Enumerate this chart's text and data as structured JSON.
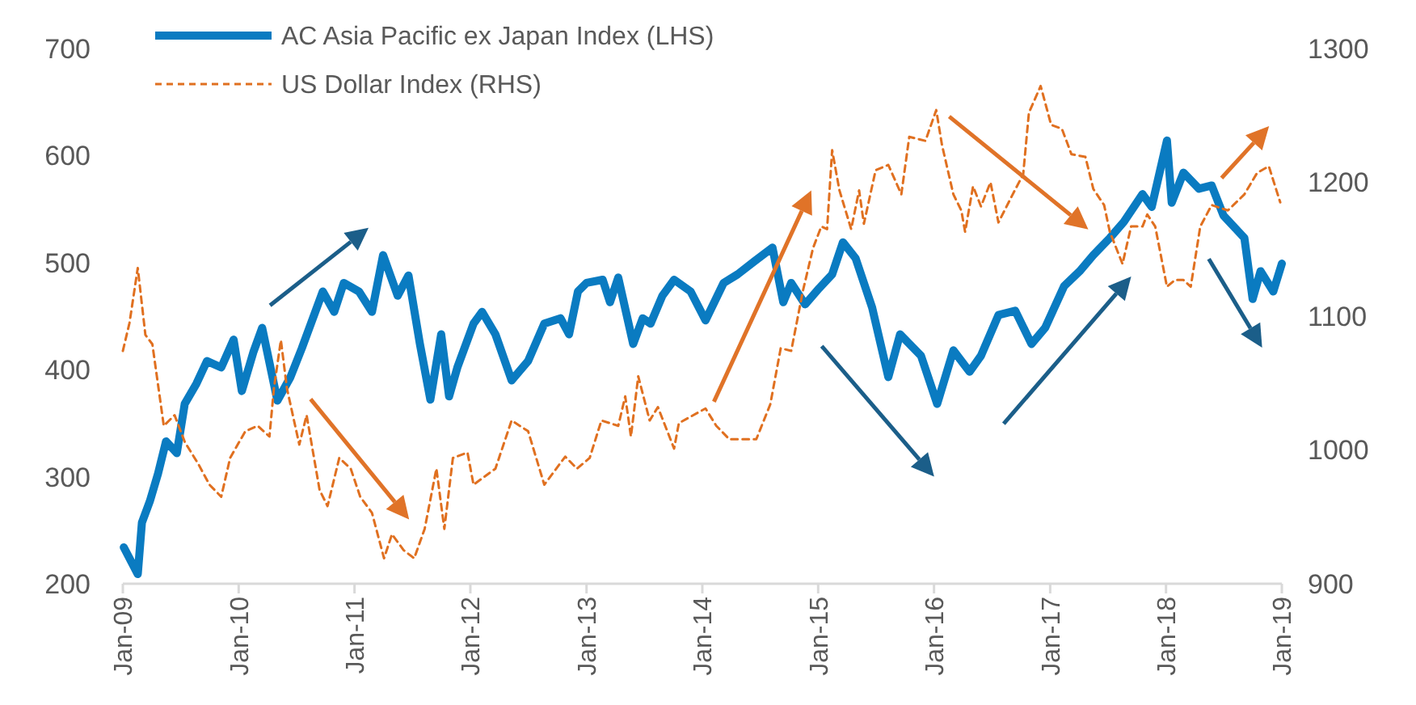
{
  "chart_data": {
    "type": "line",
    "xlim": [
      "2009-01-01",
      "2019-01-01"
    ],
    "xticks": [
      {
        "value": "2009-01-01",
        "label": "Jan-09"
      },
      {
        "value": "2010-01-01",
        "label": "Jan-10"
      },
      {
        "value": "2011-01-01",
        "label": "Jan-11"
      },
      {
        "value": "2012-01-01",
        "label": "Jan-12"
      },
      {
        "value": "2013-01-01",
        "label": "Jan-13"
      },
      {
        "value": "2014-01-01",
        "label": "Jan-14"
      },
      {
        "value": "2015-01-01",
        "label": "Jan-15"
      },
      {
        "value": "2016-01-01",
        "label": "Jan-16"
      },
      {
        "value": "2017-01-01",
        "label": "Jan-17"
      },
      {
        "value": "2018-01-01",
        "label": "Jan-18"
      },
      {
        "value": "2019-01-01",
        "label": "Jan-19"
      }
    ],
    "ylim": [
      200,
      700
    ],
    "yticks": [
      200,
      300,
      400,
      500,
      600,
      700
    ],
    "y2lim": [
      900,
      1300
    ],
    "y2ticks": [
      900,
      1000,
      1100,
      1200,
      1300
    ],
    "grid": false,
    "legend": "top left",
    "marker": "none",
    "series": [
      {
        "name": "AC Asia Pacific ex Japan Index (LHS)",
        "color": "#0a7bc1",
        "line_style": "solid",
        "x": [
          "2009-01-04",
          "2009-02-17",
          "2009-03-02",
          "2009-03-27",
          "2009-04-22",
          "2009-05-17",
          "2009-06-20",
          "2009-07-15",
          "2009-08-21",
          "2009-09-23",
          "2009-11-07",
          "2009-12-16",
          "2010-01-11",
          "2010-02-17",
          "2010-03-16",
          "2010-05-03",
          "2010-06-13",
          "2010-07-19",
          "2010-09-23",
          "2010-10-29",
          "2010-11-28",
          "2011-01-15",
          "2011-02-25",
          "2011-04-01",
          "2011-05-17",
          "2011-06-20",
          "2011-07-26",
          "2011-08-28",
          "2011-10-01",
          "2011-10-26",
          "2011-11-21",
          "2012-01-11",
          "2012-02-07",
          "2012-03-20",
          "2012-05-10",
          "2012-07-01",
          "2012-08-21",
          "2012-10-11",
          "2012-11-07",
          "2012-12-05",
          "2013-01-01",
          "2013-02-21",
          "2013-03-16",
          "2013-04-11",
          "2013-05-28",
          "2013-06-27",
          "2013-07-22",
          "2013-08-28",
          "2013-10-04",
          "2013-11-25",
          "2014-01-11",
          "2014-03-09",
          "2014-04-22",
          "2014-06-13",
          "2014-08-10",
          "2014-09-13",
          "2014-10-08",
          "2014-11-21",
          "2015-01-04",
          "2015-02-14",
          "2015-03-20",
          "2015-04-29",
          "2015-06-20",
          "2015-08-10",
          "2015-09-16",
          "2015-11-21",
          "2016-01-11",
          "2016-03-02",
          "2016-04-22",
          "2016-05-28",
          "2016-07-22",
          "2016-09-13",
          "2016-11-03",
          "2016-12-16",
          "2017-02-14",
          "2017-04-04",
          "2017-05-17",
          "2017-07-08",
          "2017-08-21",
          "2017-10-19",
          "2017-11-17",
          "2018-01-04",
          "2018-01-19",
          "2018-02-25",
          "2018-04-15",
          "2018-05-25",
          "2018-07-01",
          "2018-09-05",
          "2018-10-01",
          "2018-10-26",
          "2018-12-05",
          "2019-01-01"
        ],
        "values": [
          234,
          209,
          257,
          277,
          303,
          333,
          322,
          368,
          387,
          408,
          402,
          428,
          380,
          417,
          439,
          371,
          393,
          420,
          473,
          454,
          481,
          473,
          454,
          507,
          469,
          488,
          424,
          372,
          433,
          375,
          402,
          443,
          454,
          433,
          390,
          408,
          443,
          448,
          433,
          473,
          481,
          484,
          463,
          486,
          424,
          448,
          443,
          469,
          484,
          473,
          446,
          481,
          489,
          501,
          514,
          463,
          481,
          461,
          476,
          489,
          519,
          504,
          458,
          393,
          433,
          413,
          368,
          418,
          398,
          413,
          451,
          455,
          424,
          439,
          478,
          492,
          507,
          523,
          538,
          564,
          552,
          614,
          556,
          584,
          569,
          572,
          544,
          523,
          466,
          492,
          473,
          499
        ]
      },
      {
        "name": "US Dollar Index (RHS)",
        "color": "#e07020",
        "axis": "y2",
        "line_style": "dashed",
        "x": [
          "2009-01-01",
          "2009-01-22",
          "2009-02-17",
          "2009-03-13",
          "2009-04-04",
          "2009-05-10",
          "2009-06-13",
          "2009-07-15",
          "2009-08-28",
          "2009-10-01",
          "2009-11-07",
          "2009-12-05",
          "2010-01-22",
          "2010-03-02",
          "2010-04-08",
          "2010-04-22",
          "2010-05-14",
          "2010-06-02",
          "2010-07-11",
          "2010-08-03",
          "2010-09-13",
          "2010-10-08",
          "2010-11-14",
          "2010-12-20",
          "2011-01-19",
          "2011-02-25",
          "2011-04-04",
          "2011-04-29",
          "2011-06-05",
          "2011-07-08",
          "2011-08-10",
          "2011-09-16",
          "2011-10-11",
          "2011-11-07",
          "2011-12-23",
          "2012-01-11",
          "2012-03-20",
          "2012-05-10",
          "2012-07-01",
          "2012-08-21",
          "2012-10-26",
          "2012-12-02",
          "2013-01-11",
          "2013-02-17",
          "2013-04-11",
          "2013-05-03",
          "2013-05-21",
          "2013-06-13",
          "2013-07-19",
          "2013-08-14",
          "2013-10-04",
          "2013-10-19",
          "2014-01-11",
          "2014-02-14",
          "2014-03-27",
          "2014-06-20",
          "2014-08-03",
          "2014-09-05",
          "2014-10-08",
          "2014-11-14",
          "2014-12-16",
          "2015-01-11",
          "2015-01-29",
          "2015-02-14",
          "2015-03-09",
          "2015-04-15",
          "2015-05-10",
          "2015-05-25",
          "2015-07-01",
          "2015-08-10",
          "2015-09-20",
          "2015-10-15",
          "2015-12-05",
          "2016-01-08",
          "2016-01-26",
          "2016-03-02",
          "2016-03-27",
          "2016-04-08",
          "2016-05-03",
          "2016-05-28",
          "2016-06-27",
          "2016-07-22",
          "2016-09-05",
          "2016-10-08",
          "2016-10-26",
          "2016-12-02",
          "2017-01-04",
          "2017-02-07",
          "2017-03-09",
          "2017-04-22",
          "2017-05-17",
          "2017-06-20",
          "2017-07-08",
          "2017-08-17",
          "2017-09-13",
          "2017-10-19",
          "2017-11-03",
          "2017-11-28",
          "2018-01-04",
          "2018-01-29",
          "2018-02-25",
          "2018-03-20",
          "2018-04-19",
          "2018-05-25",
          "2018-07-15",
          "2018-09-05",
          "2018-10-15",
          "2018-11-21",
          "2018-12-27"
        ],
        "values": [
          1074,
          1095,
          1136,
          1086,
          1079,
          1018,
          1026,
          1006,
          989,
          974,
          965,
          994,
          1014,
          1018,
          1010,
          1046,
          1082,
          1046,
          1004,
          1026,
          970,
          958,
          994,
          986,
          965,
          953,
          919,
          937,
          925,
          919,
          941,
          986,
          941,
          994,
          998,
          974,
          986,
          1022,
          1014,
          974,
          995,
          986,
          994,
          1022,
          1018,
          1040,
          1010,
          1055,
          1022,
          1032,
          1001,
          1020,
          1031,
          1018,
          1008,
          1008,
          1034,
          1076,
          1074,
          1119,
          1151,
          1167,
          1165,
          1224,
          1194,
          1165,
          1194,
          1169,
          1209,
          1213,
          1191,
          1234,
          1231,
          1254,
          1228,
          1191,
          1179,
          1163,
          1197,
          1182,
          1200,
          1170,
          1191,
          1206,
          1252,
          1272,
          1243,
          1240,
          1221,
          1219,
          1195,
          1183,
          1163,
          1139,
          1167,
          1167,
          1176,
          1167,
          1122,
          1127,
          1127,
          1122,
          1167,
          1183,
          1179,
          1191,
          1207,
          1212,
          1185
        ]
      }
    ]
  }
}
